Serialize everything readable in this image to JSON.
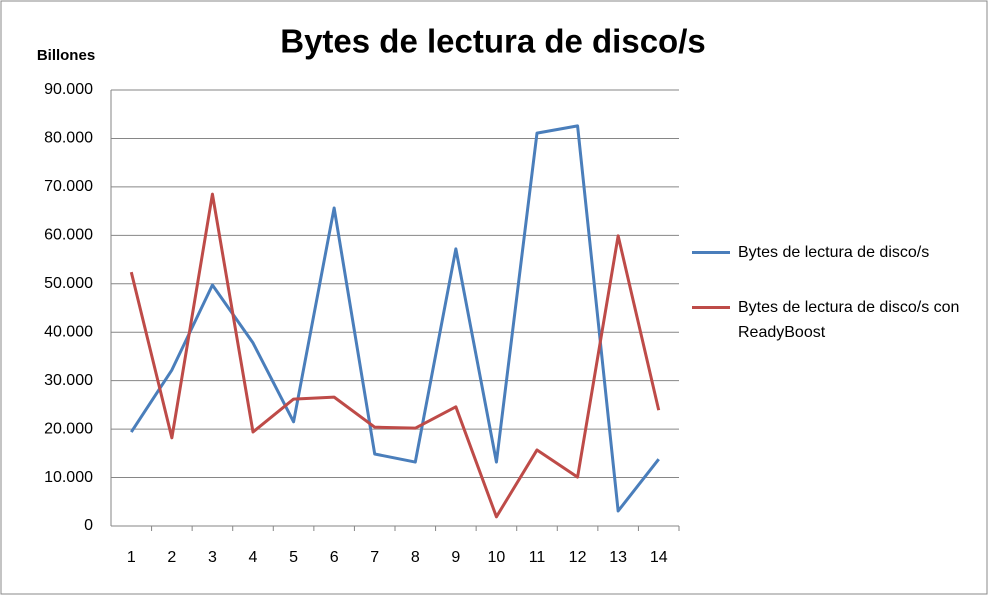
{
  "chart_data": {
    "type": "line",
    "title": "Bytes de lectura de disco/s",
    "y_label": "Billones",
    "categories": [
      "1",
      "2",
      "3",
      "4",
      "5",
      "6",
      "7",
      "8",
      "9",
      "10",
      "11",
      "12",
      "13",
      "14"
    ],
    "series": [
      {
        "name": "Bytes de lectura de disco/s",
        "color": "#4a7ebb",
        "values": [
          19400,
          32200,
          49750,
          37800,
          21500,
          65650,
          14860,
          13200,
          57200,
          13200,
          81100,
          82600,
          3100,
          13800
        ]
      },
      {
        "name": "Bytes de lectura de disco/s con ReadyBoost",
        "color": "#be4b48",
        "values": [
          52400,
          18200,
          68500,
          19400,
          26200,
          26600,
          20400,
          20200,
          24600,
          1900,
          15700,
          10100,
          59900,
          23900
        ]
      }
    ],
    "ylim": [
      0,
      90000
    ],
    "yticks": [
      0,
      {
        "value": 10000,
        "label": "10.000"
      },
      {
        "value": 20000,
        "label": "20.000"
      },
      {
        "value": 30000,
        "label": "30.000"
      },
      {
        "value": 40000,
        "label": "40.000"
      },
      {
        "value": 50000,
        "label": "50.000"
      },
      {
        "value": 60000,
        "label": "60.000"
      },
      {
        "value": 70000,
        "label": "70.000"
      },
      {
        "value": 80000,
        "label": "80.000"
      },
      {
        "value": 90000,
        "label": "90.000"
      }
    ],
    "grid": true,
    "legend": "right"
  }
}
